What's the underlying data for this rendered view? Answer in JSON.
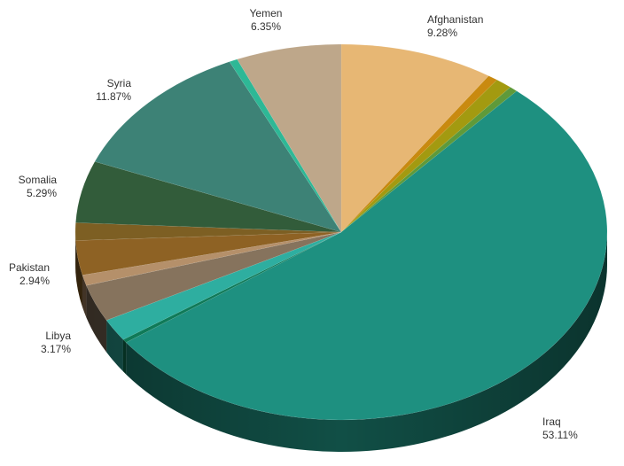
{
  "chart_data": {
    "type": "pie",
    "title": "",
    "style": "3d",
    "slices": [
      {
        "label": "Afghanistan",
        "value": 9.28,
        "value_text": "9.28%",
        "color": "#e7b774"
      },
      {
        "label": "",
        "value": 0.6,
        "value_text": "",
        "color": "#c98a10"
      },
      {
        "label": "",
        "value": 1.0,
        "value_text": "",
        "color": "#a39a10"
      },
      {
        "label": "",
        "value": 0.5,
        "value_text": "",
        "color": "#5f9a3a"
      },
      {
        "label": "Iraq",
        "value": 53.11,
        "value_text": "53.11%",
        "color": "#1e9080"
      },
      {
        "label": "",
        "value": 0.3,
        "value_text": "",
        "color": "#0f7a58"
      },
      {
        "label": "",
        "value": 1.9,
        "value_text": "",
        "color": "#2eaea0"
      },
      {
        "label": "Libya",
        "value": 3.17,
        "value_text": "3.17%",
        "color": "#86735d"
      },
      {
        "label": "",
        "value": 0.9,
        "value_text": "",
        "color": "#b5906a"
      },
      {
        "label": "Pakistan",
        "value": 2.94,
        "value_text": "2.94%",
        "color": "#8e6224"
      },
      {
        "label": "",
        "value": 1.5,
        "value_text": "",
        "color": "#7d5f23"
      },
      {
        "label": "Somalia",
        "value": 5.29,
        "value_text": "5.29%",
        "color": "#325c3a"
      },
      {
        "label": "Syria",
        "value": 11.87,
        "value_text": "11.87%",
        "color": "#3d8276"
      },
      {
        "label": "",
        "value": 0.5,
        "value_text": "",
        "color": "#2eb896"
      },
      {
        "label": "Yemen",
        "value": 6.35,
        "value_text": "6.35%",
        "color": "#bea78a"
      }
    ]
  }
}
